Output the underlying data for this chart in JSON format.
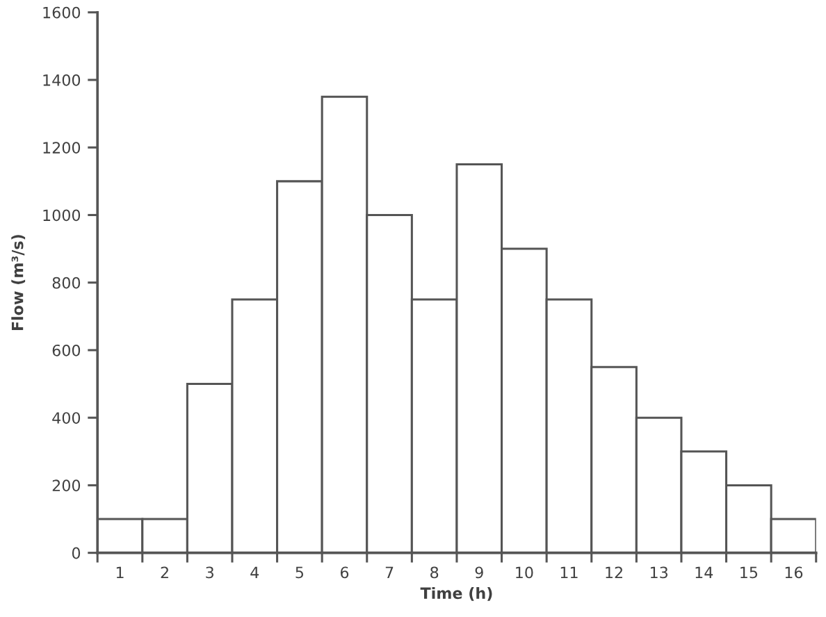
{
  "chart_data": {
    "type": "bar",
    "xlabel": "Time (h)",
    "ylabel": "Flow (m³/s)",
    "categories": [
      "1",
      "2",
      "3",
      "4",
      "5",
      "6",
      "7",
      "8",
      "9",
      "10",
      "11",
      "12",
      "13",
      "14",
      "15",
      "16"
    ],
    "values": [
      100,
      100,
      500,
      750,
      1100,
      1350,
      1000,
      750,
      1150,
      900,
      750,
      550,
      400,
      300,
      200,
      100
    ],
    "color": "#ffffff",
    "ylim": [
      0,
      1600
    ],
    "yticks": [
      0,
      200,
      400,
      600,
      800,
      1000,
      1200,
      1400,
      1600
    ],
    "grid": false
  }
}
